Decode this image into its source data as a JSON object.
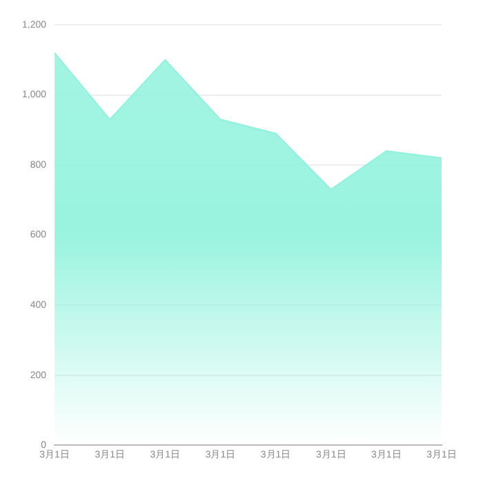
{
  "chart_data": {
    "type": "area",
    "categories": [
      "3月1日",
      "3月1日",
      "3月1日",
      "3月1日",
      "3月1日",
      "3月1日",
      "3月1日",
      "3月1日"
    ],
    "series": [
      {
        "color": "#8ef2dc",
        "values": [
          1120,
          930,
          1100,
          930,
          890,
          730,
          840,
          820
        ]
      }
    ],
    "ylim": [
      0,
      1200
    ],
    "yticks": [
      0,
      200,
      400,
      600,
      800,
      {
        "value": 1000,
        "label": "1,000"
      },
      {
        "value": 1200,
        "label": "1,200"
      }
    ],
    "grid": "y",
    "legend": false,
    "marker": "none"
  }
}
